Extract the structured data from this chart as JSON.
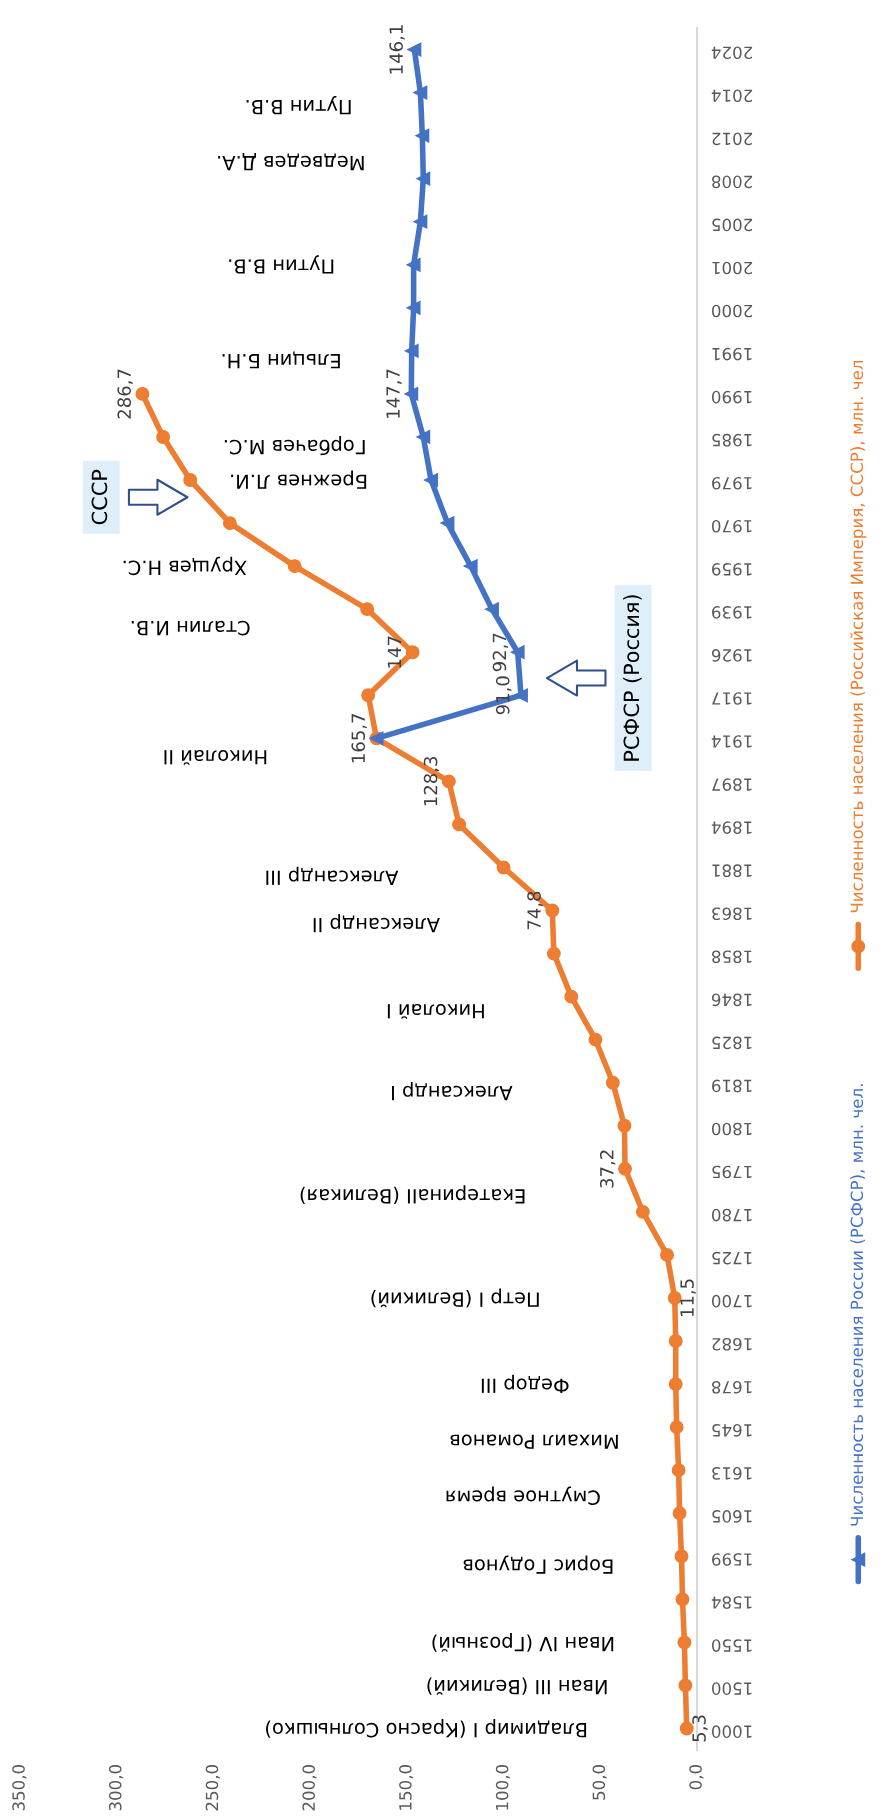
{
  "chart_data": {
    "type": "line",
    "orientation": "horizontal",
    "categories": [
      "2024",
      "2014",
      "2012",
      "2008",
      "2005",
      "2001",
      "2000",
      "1991",
      "1990",
      "1985",
      "1979",
      "1970",
      "1959",
      "1939",
      "1926",
      "1917",
      "1914",
      "1897",
      "1894",
      "1881",
      "1863",
      "1858",
      "1846",
      "1825",
      "1819",
      "1800",
      "1795",
      "1780",
      "1725",
      "1700",
      "1682",
      "1678",
      "1645",
      "1613",
      "1605",
      "1599",
      "1584",
      "1550",
      "1500",
      "1000"
    ],
    "series": [
      {
        "name": "Численность населения России (РСФСР), млн. чел.",
        "color": "#4472c4",
        "marker": "triangle",
        "values": [
          146.1,
          143,
          142,
          141.5,
          143,
          146.5,
          146.5,
          147.5,
          147.7,
          141.5,
          137.5,
          129,
          117,
          106,
          92.7,
          91.0,
          165.7,
          null,
          null,
          null,
          null,
          null,
          null,
          null,
          null,
          null,
          null,
          null,
          null,
          null,
          null,
          null,
          null,
          null,
          null,
          null,
          null,
          null,
          null,
          null
        ],
        "value_labels": [
          "146,1",
          null,
          null,
          null,
          null,
          null,
          null,
          null,
          "147,7",
          null,
          null,
          null,
          null,
          null,
          "92,7",
          "91,0",
          null,
          null,
          null,
          null,
          null,
          null,
          null,
          null,
          null,
          null,
          null,
          null,
          null,
          null,
          null,
          null,
          null,
          null,
          null,
          null,
          null,
          null,
          null,
          null
        ]
      },
      {
        "name": "Численность населения (Российская Империя, СССР), млн. чел",
        "color": "#ed7d31",
        "marker": "circle",
        "values": [
          null,
          null,
          null,
          null,
          null,
          null,
          null,
          null,
          286.7,
          276,
          262,
          241.5,
          208,
          170.5,
          147,
          170,
          165.7,
          128.3,
          123,
          100,
          74.8,
          74,
          65,
          52.5,
          43.5,
          37.5,
          37.2,
          28,
          15.5,
          11.5,
          11,
          11,
          10.5,
          9.5,
          9,
          8,
          7.5,
          6.5,
          6,
          5.3
        ],
        "value_labels": [
          null,
          null,
          null,
          null,
          null,
          null,
          null,
          null,
          "286,7",
          null,
          null,
          null,
          null,
          null,
          "147",
          null,
          "165,7",
          "128,3",
          null,
          null,
          "74,8",
          null,
          null,
          null,
          null,
          null,
          "37,2",
          null,
          null,
          "11,5",
          null,
          null,
          null,
          null,
          null,
          null,
          null,
          null,
          null,
          "5,3"
        ]
      }
    ],
    "xlim": [
      350,
      0
    ],
    "xticks": [
      {
        "value": 350,
        "label": "350,0"
      },
      {
        "value": 300,
        "label": "300,0"
      },
      {
        "value": 250,
        "label": "250,0"
      },
      {
        "value": 200,
        "label": "200,0"
      },
      {
        "value": 150,
        "label": "150,0"
      },
      {
        "value": 100,
        "label": "100,0"
      },
      {
        "value": 50,
        "label": "50,0"
      },
      {
        "value": 0,
        "label": "0,0"
      }
    ],
    "legend": "right",
    "annotations": [
      "Путин В.В.",
      "Медведев Д.А.",
      "Путин В.В.",
      "Ельцин Б.Н.",
      "Горбачев М.С.",
      "Брежнев Л.И.",
      "Хрущев Н.С.",
      "Сталин И.В.",
      "Николай II",
      "Александр III",
      "Александр II",
      "Николай I",
      "Александр I",
      "ЕкатеринаII (Великая)",
      "Петр I (Великий)",
      "Федор III",
      "Михаил Романов",
      "Смутное время",
      "Борис Годунов",
      "Иван IV (Грозный)",
      "Иван III (Великий)",
      "Владимир I (Красно Солнышко)",
      "СССР",
      "РСФСР (Россия)"
    ]
  }
}
